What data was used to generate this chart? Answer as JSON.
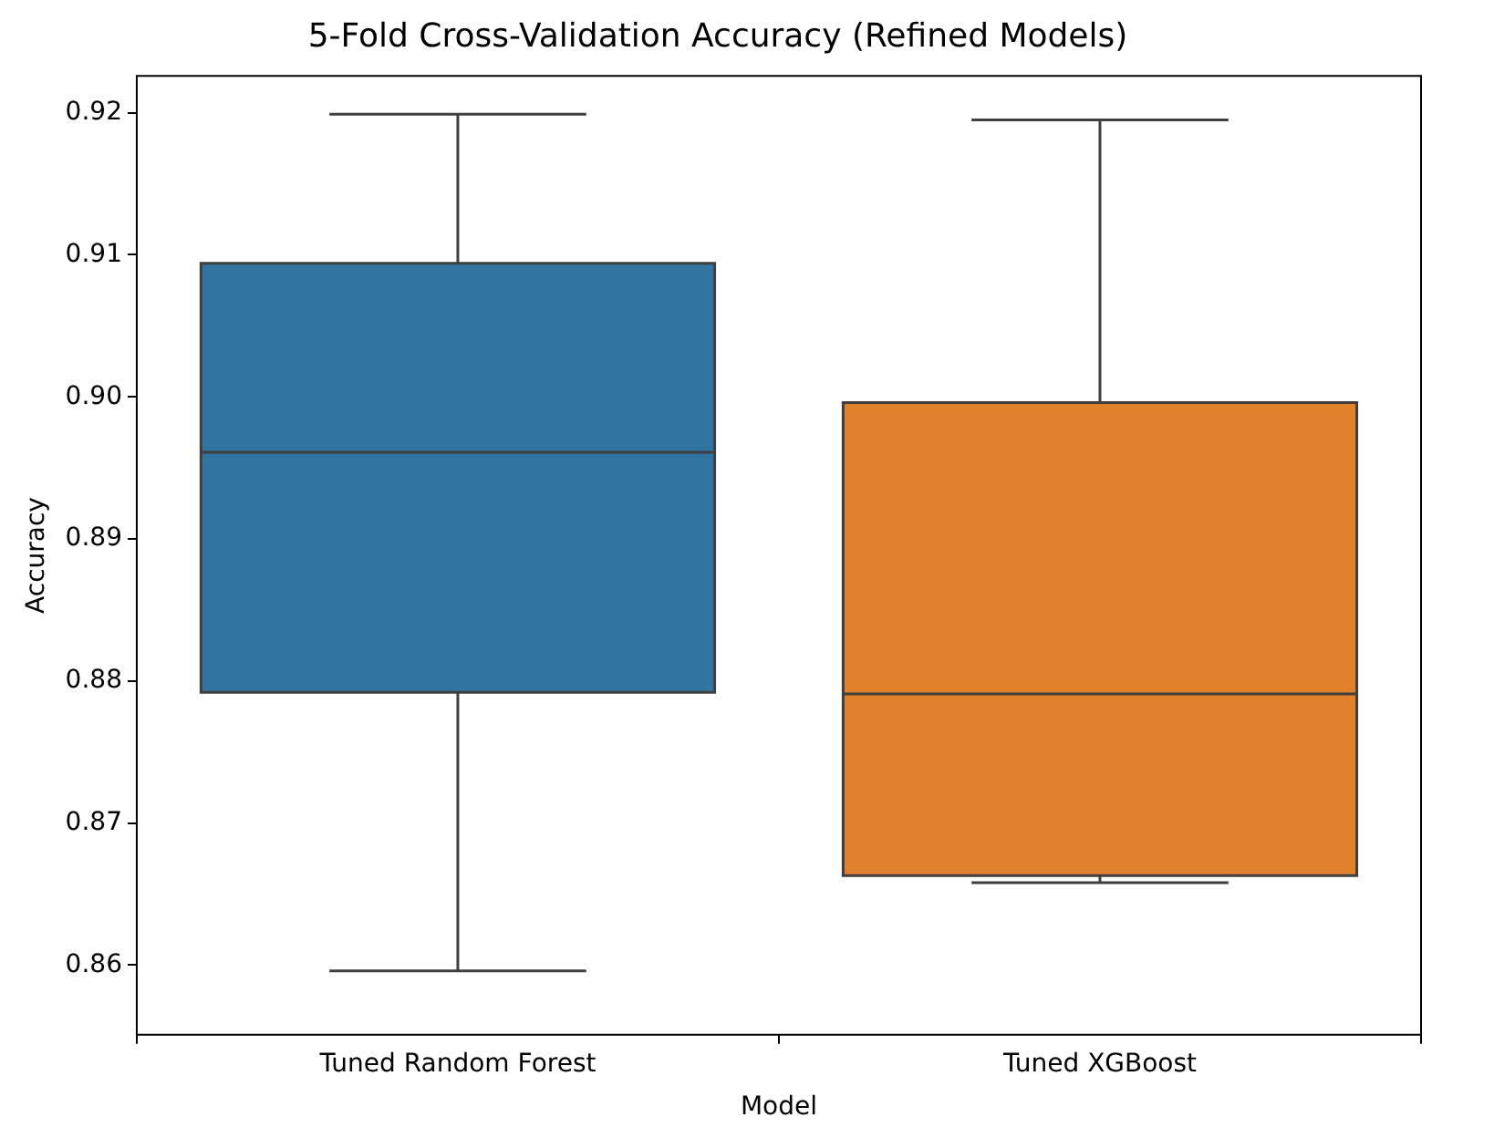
{
  "chart_data": {
    "type": "box",
    "title": "5-Fold Cross-Validation Accuracy (Refined Models)",
    "xlabel": "Model",
    "ylabel": "Accuracy",
    "categories": [
      "Tuned Random Forest",
      "Tuned XGBoost"
    ],
    "colors": [
      "#3274a1",
      "#e1812c"
    ],
    "boxes": [
      {
        "low": 0.8596,
        "q1": 0.8792,
        "median": 0.8961,
        "q3": 0.9094,
        "high": 0.9199
      },
      {
        "low": 0.8658,
        "q1": 0.8663,
        "median": 0.8791,
        "q3": 0.8996,
        "high": 0.9195
      }
    ],
    "ylim": [
      0.8551,
      0.9226
    ],
    "yticks": [
      0.86,
      0.87,
      0.88,
      0.89,
      {
        "value": 0.9,
        "label": "0.90"
      },
      0.91,
      0.92
    ],
    "grid": false,
    "legend": false
  }
}
